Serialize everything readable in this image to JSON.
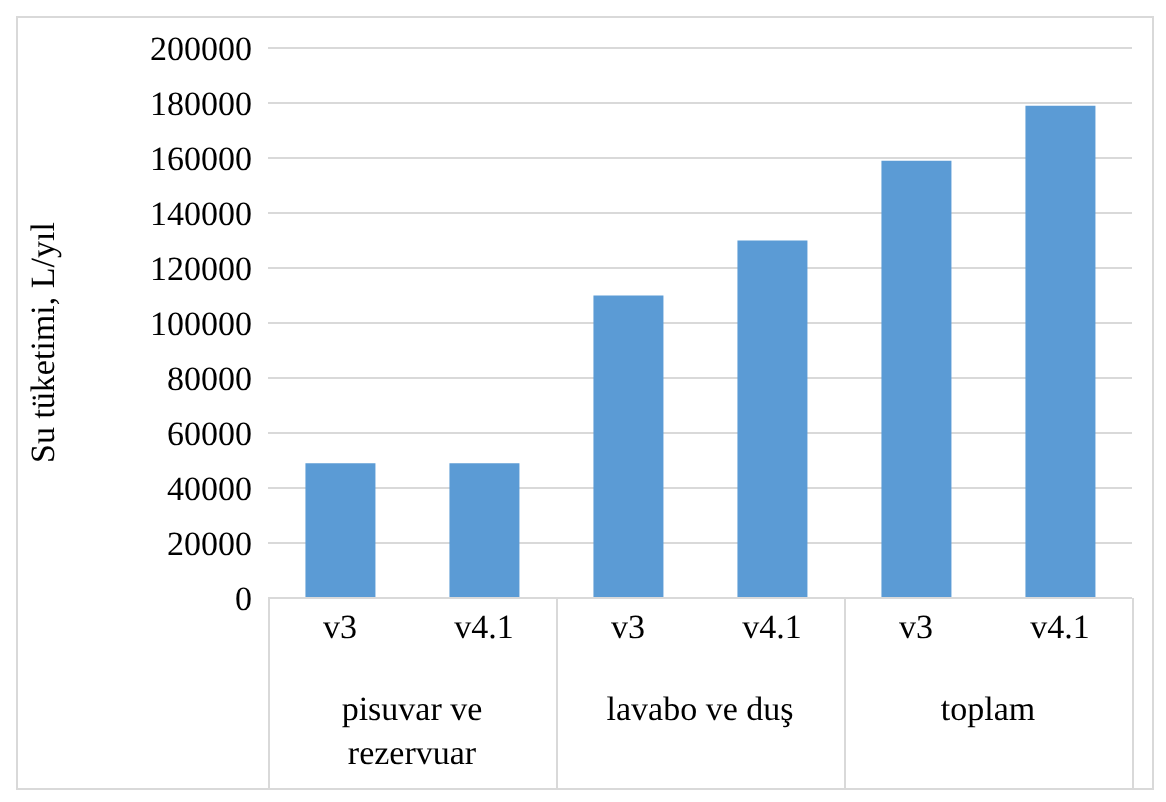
{
  "chart_data": {
    "type": "bar",
    "ylabel": "Su tüketimi, L/yıl",
    "categories": [
      "v3",
      "v4.1",
      "v3",
      "v4.1",
      "v3",
      "v4.1"
    ],
    "values": [
      49000,
      49000,
      110000,
      130000,
      159000,
      179000
    ],
    "color": "#5b9bd5",
    "annotations": [
      "pisuvar ve rezervuar",
      "lavabo ve duş",
      "toplam"
    ],
    "ylim": [
      0,
      200000
    ],
    "yticks": [
      0,
      20000,
      40000,
      60000,
      80000,
      100000,
      120000,
      140000,
      160000,
      180000,
      200000
    ],
    "grid": "y",
    "legend": false
  }
}
